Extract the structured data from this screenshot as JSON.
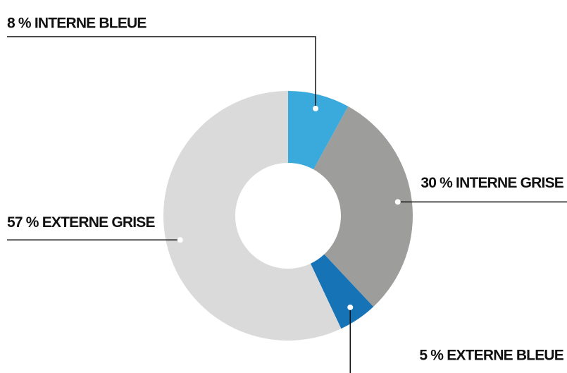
{
  "chart_data": {
    "type": "donut",
    "values": [
      8,
      30,
      5,
      57
    ],
    "value_labels": [
      "8 % INTERNE BLEUE",
      "30 % INTERNE GRISE",
      "5 % EXTERNE BLEUE",
      "57 % EXTERNE GRISE"
    ],
    "colors": [
      "#3aa9dc",
      "#9d9d9c",
      "#1673b6",
      "#dadada"
    ]
  }
}
